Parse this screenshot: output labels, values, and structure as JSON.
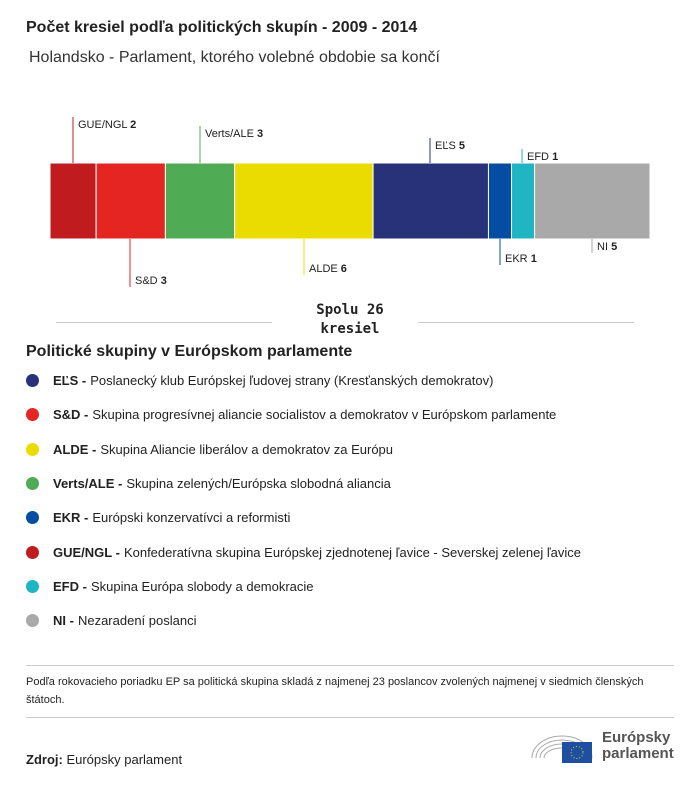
{
  "title": "Počet kresiel podľa politických skupín - 2009 - 2014",
  "subtitle": "Holandsko - Parlament, ktorého volebné obdobie sa končí",
  "chart_data": {
    "type": "bar",
    "subtype": "stacked-horizontal",
    "categories": [
      "GUE/NGL",
      "S&D",
      "Verts/ALE",
      "ALDE",
      "EĽS",
      "EKR",
      "EFD",
      "NI"
    ],
    "values": [
      2,
      3,
      3,
      6,
      5,
      1,
      1,
      5
    ],
    "colors": [
      "#c01c1f",
      "#e52522",
      "#50ac54",
      "#ebdc00",
      "#283279",
      "#034ea2",
      "#20b5c2",
      "#a9a9a9"
    ],
    "label_side": [
      "top",
      "bottom",
      "top",
      "bottom",
      "top",
      "bottom",
      "top",
      "bottom"
    ],
    "total": 26
  },
  "total": {
    "line1": "Spolu 26",
    "line2": "kresiel"
  },
  "legend": {
    "title": "Politické skupiny v Európskom parlamente",
    "items": [
      {
        "abbr": "EĽS -",
        "text": "Poslanecký klub Európskej ľudovej strany (Kresťanských demokratov)",
        "color": "#283279"
      },
      {
        "abbr": "S&D -",
        "text": "Skupina progresívnej aliancie socialistov a demokratov v Európskom parlamente",
        "color": "#e52522"
      },
      {
        "abbr": "ALDE -",
        "text": "Skupina Aliancie liberálov a demokratov za Európu",
        "color": "#ebdc00"
      },
      {
        "abbr": "Verts/ALE -",
        "text": "Skupina zelených/Európska slobodná aliancia",
        "color": "#50ac54"
      },
      {
        "abbr": "EKR -",
        "text": "Európski konzervatívci a reformisti",
        "color": "#034ea2"
      },
      {
        "abbr": "GUE/NGL -",
        "text": "Konfederatívna skupina Európskej zjednotenej ľavice - Severskej zelenej ľavice",
        "color": "#c01c1f"
      },
      {
        "abbr": "EFD -",
        "text": "Skupina Európa slobody a demokracie",
        "color": "#20b5c2"
      },
      {
        "abbr": "NI -",
        "text": "Nezaradení poslanci",
        "color": "#a9a9a9"
      }
    ]
  },
  "note": "Podľa rokovacieho poriadku EP sa politická skupina skladá z najmenej 23 poslancov zvolených najmenej v siedmich členských štátoch.",
  "source": {
    "label": "Zdroj:",
    "value": "Európsky parlament"
  },
  "logo": {
    "line1": "Európsky",
    "line2": "parlament"
  }
}
